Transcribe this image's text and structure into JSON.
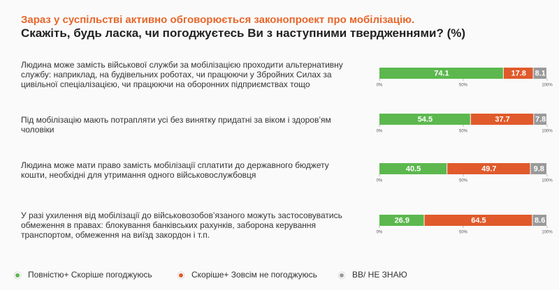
{
  "chart_data": {
    "type": "stacked-barh",
    "title": "Зараз у суспільстві активно обговорюється законопроект про мобілізацію.",
    "subtitle": "Скажіть, будь ласка, чи погоджуєтесь Ви з наступними твердженнями? (%)",
    "categories": [
      "Людина може замість військової служби за мобілізацією проходити альтернативну службу: наприклад, на будівельних роботах, чи працюючи у Збройних Силах за цивільної спеціалізацією, чи працюючи на оборонних підприємствах тощо",
      "Під мобілізацію мають потрапляти усі без винятку придатні за віком і здоров’ям чоловіки",
      "Людина може мати право замість мобілізації сплатити до державного бюджету кошти, необхідні для утримання одного військовослужбовця",
      "У разі ухилення від мобілізації до військовозобов’язаного можуть застосовуватись обмеження в правах: блокування банківських рахунків, заборона керування транспортом, обмеження на виїзд закордон і т.п."
    ],
    "series": [
      {
        "name": "Повністю+ Скоріше погоджуюсь",
        "color": "#5cb84e",
        "values": [
          74.1,
          54.5,
          40.5,
          26.9
        ]
      },
      {
        "name": "Скоріше+ Зовсім не погоджуюсь",
        "color": "#e05a2b",
        "values": [
          17.8,
          37.7,
          49.7,
          64.5
        ]
      },
      {
        "name": "ВВ/ НЕ ЗНАЮ",
        "color": "#9a9a9a",
        "values": [
          8.1,
          7.8,
          9.8,
          8.6
        ]
      }
    ],
    "xlim": [
      0,
      100
    ],
    "xticks": [
      {
        "value": 0,
        "label": "0%"
      },
      {
        "value": 50,
        "label": "50%"
      },
      {
        "value": 100,
        "label": "100%"
      }
    ],
    "title_color": "#e8662a"
  }
}
